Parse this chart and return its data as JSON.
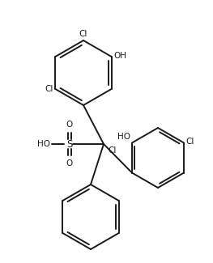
{
  "background": "#ffffff",
  "line_color": "#1a1a1a",
  "line_width": 1.4,
  "font_size": 7.5,
  "fig_width": 2.63,
  "fig_height": 3.25,
  "dpi": 100,
  "xlim": [
    0,
    263
  ],
  "ylim": [
    0,
    325
  ]
}
